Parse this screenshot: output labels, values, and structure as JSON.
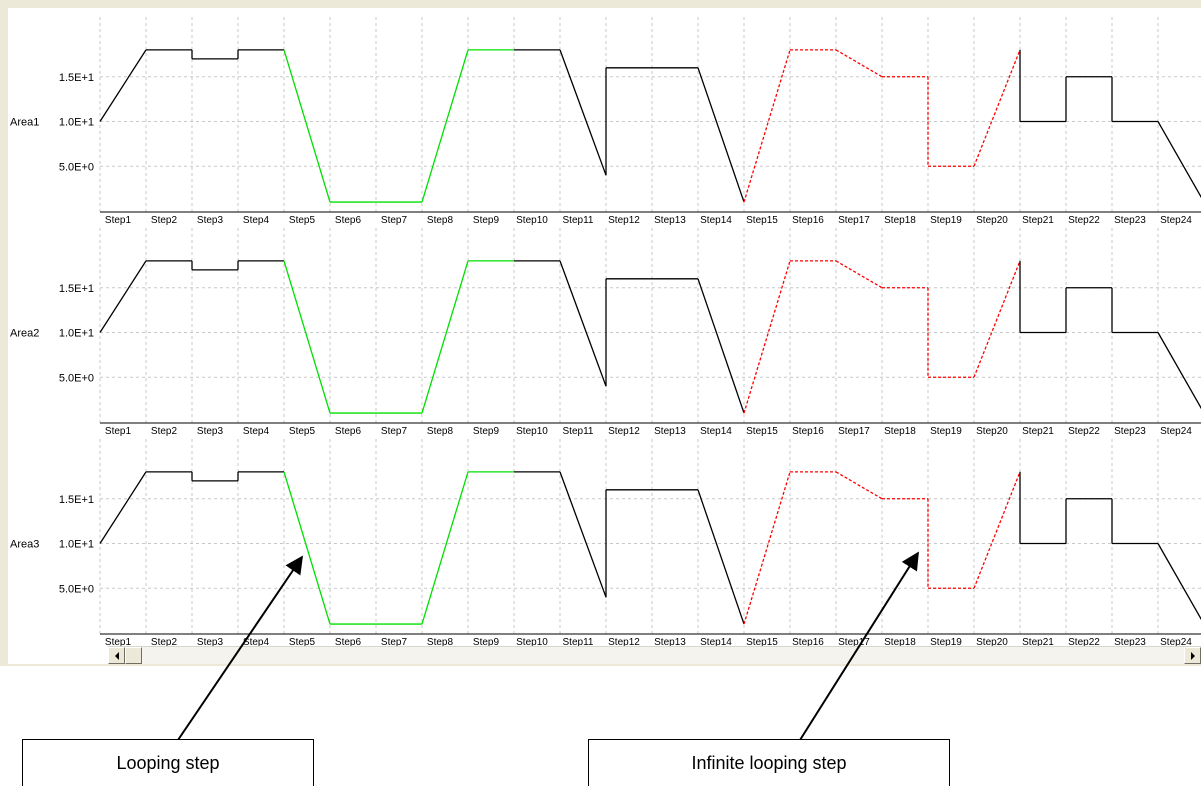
{
  "chart_data": {
    "type": "line",
    "categories": [
      "Step1",
      "Step2",
      "Step3",
      "Step4",
      "Step5",
      "Step6",
      "Step7",
      "Step8",
      "Step9",
      "Step10",
      "Step11",
      "Step12",
      "Step13",
      "Step14",
      "Step15",
      "Step16",
      "Step17",
      "Step18",
      "Step19",
      "Step20",
      "Step21",
      "Step22",
      "Step23",
      "Step24"
    ],
    "y_ticks": [
      {
        "value": 5,
        "label": "5.0E+0"
      },
      {
        "value": 10,
        "label": "1.0E+1"
      },
      {
        "value": 15,
        "label": "1.5E+1"
      }
    ],
    "ylim": [
      0,
      20
    ],
    "grid": true,
    "colors": {
      "normal": "#000000",
      "looping": "#00e000",
      "infinite_looping": "#ff0000"
    },
    "panels": [
      {
        "ylabel": "Area1"
      },
      {
        "ylabel": "Area2"
      },
      {
        "ylabel": "Area3"
      }
    ],
    "profile": [
      {
        "step": "Step1",
        "start": 10,
        "end": 18,
        "kind": "ramp",
        "mode": "normal"
      },
      {
        "step": "Step2",
        "start": 18,
        "end": 18,
        "kind": "ramp",
        "mode": "normal"
      },
      {
        "step": "Step3",
        "start": 17,
        "end": 17,
        "kind": "jump",
        "mode": "normal"
      },
      {
        "step": "Step4",
        "start": 18,
        "end": 18,
        "kind": "jump",
        "mode": "normal"
      },
      {
        "step": "Step5",
        "start": 18,
        "end": 1,
        "kind": "ramp",
        "mode": "looping"
      },
      {
        "step": "Step6",
        "start": 1,
        "end": 1,
        "kind": "ramp",
        "mode": "looping"
      },
      {
        "step": "Step7",
        "start": 1,
        "end": 1,
        "kind": "ramp",
        "mode": "looping"
      },
      {
        "step": "Step8",
        "start": 1,
        "end": 18,
        "kind": "ramp",
        "mode": "looping"
      },
      {
        "step": "Step9",
        "start": 18,
        "end": 18,
        "kind": "ramp",
        "mode": "looping"
      },
      {
        "step": "Step10",
        "start": 18,
        "end": 18,
        "kind": "ramp",
        "mode": "normal"
      },
      {
        "step": "Step11",
        "start": 18,
        "end": 4,
        "kind": "ramp",
        "mode": "normal"
      },
      {
        "step": "Step12",
        "start": 16,
        "end": 16,
        "kind": "jump",
        "mode": "normal"
      },
      {
        "step": "Step13",
        "start": 16,
        "end": 16,
        "kind": "ramp",
        "mode": "normal"
      },
      {
        "step": "Step14",
        "start": 16,
        "end": 1,
        "kind": "ramp",
        "mode": "normal"
      },
      {
        "step": "Step15",
        "start": 1,
        "end": 18,
        "kind": "ramp",
        "mode": "infinite_looping"
      },
      {
        "step": "Step16",
        "start": 18,
        "end": 18,
        "kind": "ramp",
        "mode": "infinite_looping"
      },
      {
        "step": "Step17",
        "start": 18,
        "end": 15,
        "kind": "ramp",
        "mode": "infinite_looping"
      },
      {
        "step": "Step18",
        "start": 15,
        "end": 15,
        "kind": "ramp",
        "mode": "infinite_looping"
      },
      {
        "step": "Step19",
        "start": 5,
        "end": 5,
        "kind": "jump",
        "mode": "infinite_looping"
      },
      {
        "step": "Step20",
        "start": 5,
        "end": 18,
        "kind": "ramp",
        "mode": "infinite_looping"
      },
      {
        "step": "Step21",
        "start": 10,
        "end": 10,
        "kind": "jump",
        "mode": "normal"
      },
      {
        "step": "Step22",
        "start": 15,
        "end": 15,
        "kind": "jump",
        "mode": "normal"
      },
      {
        "step": "Step23",
        "start": 10,
        "end": 10,
        "kind": "jump",
        "mode": "normal"
      },
      {
        "step": "Step24",
        "start": 10,
        "end": 1,
        "kind": "ramp",
        "mode": "normal"
      }
    ]
  },
  "callouts": {
    "looping": "Looping step",
    "infinite": "Infinite looping step"
  }
}
